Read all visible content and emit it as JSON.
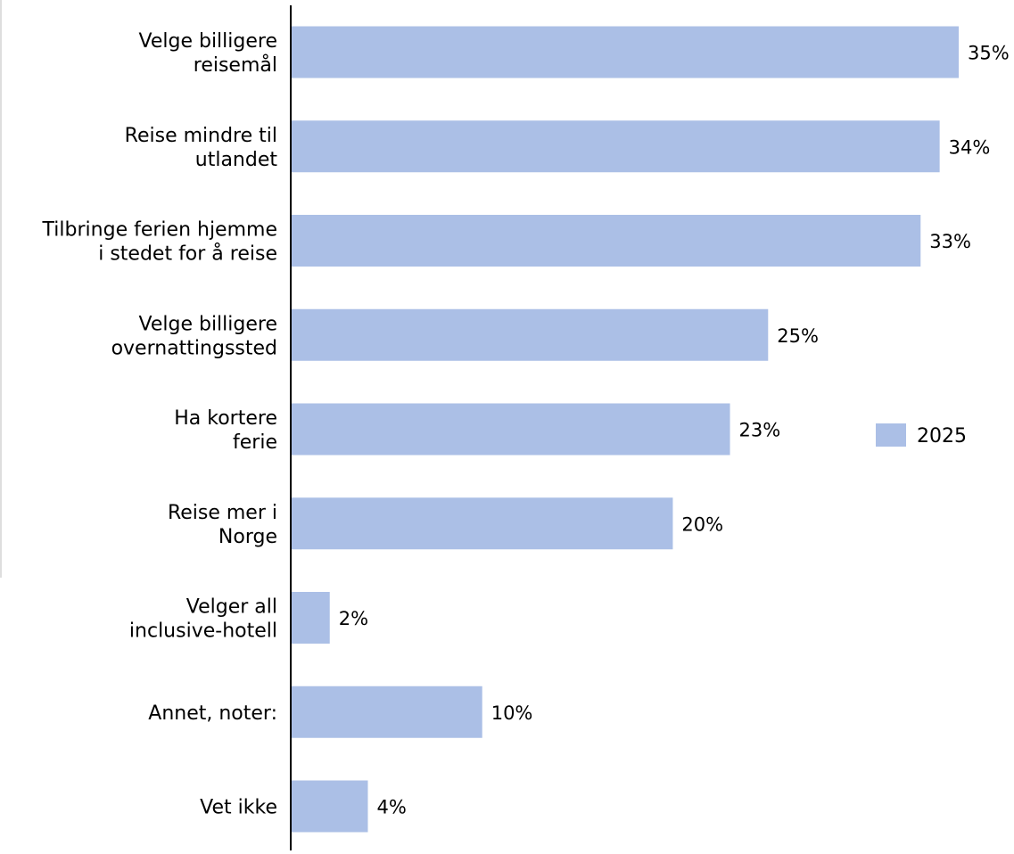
{
  "chart_data": {
    "type": "bar",
    "orientation": "horizontal",
    "categories": [
      [
        "Velge billigere",
        "reisemål"
      ],
      [
        "Reise mindre til",
        "utlandet"
      ],
      [
        "Tilbringe ferien hjemme",
        "i stedet for å reise"
      ],
      [
        "Velge billigere",
        "overnattingssted"
      ],
      [
        "Ha kortere",
        "ferie"
      ],
      [
        "Reise mer i",
        "Norge"
      ],
      [
        "Velger all",
        "inclusive-hotell"
      ],
      [
        "Annet, noter:"
      ],
      [
        "Vet ikke"
      ]
    ],
    "series": [
      {
        "name": "2025",
        "color": "#abbfe6",
        "values": [
          35,
          34,
          33,
          25,
          23,
          20,
          2,
          10,
          4
        ],
        "value_labels": [
          "35%",
          "34%",
          "33%",
          "25%",
          "23%",
          "20%",
          "2%",
          "10%",
          "4%"
        ]
      }
    ],
    "xlim": [
      0,
      35
    ],
    "grid": false,
    "legend": {
      "position": "right",
      "entries": [
        "2025"
      ]
    }
  }
}
